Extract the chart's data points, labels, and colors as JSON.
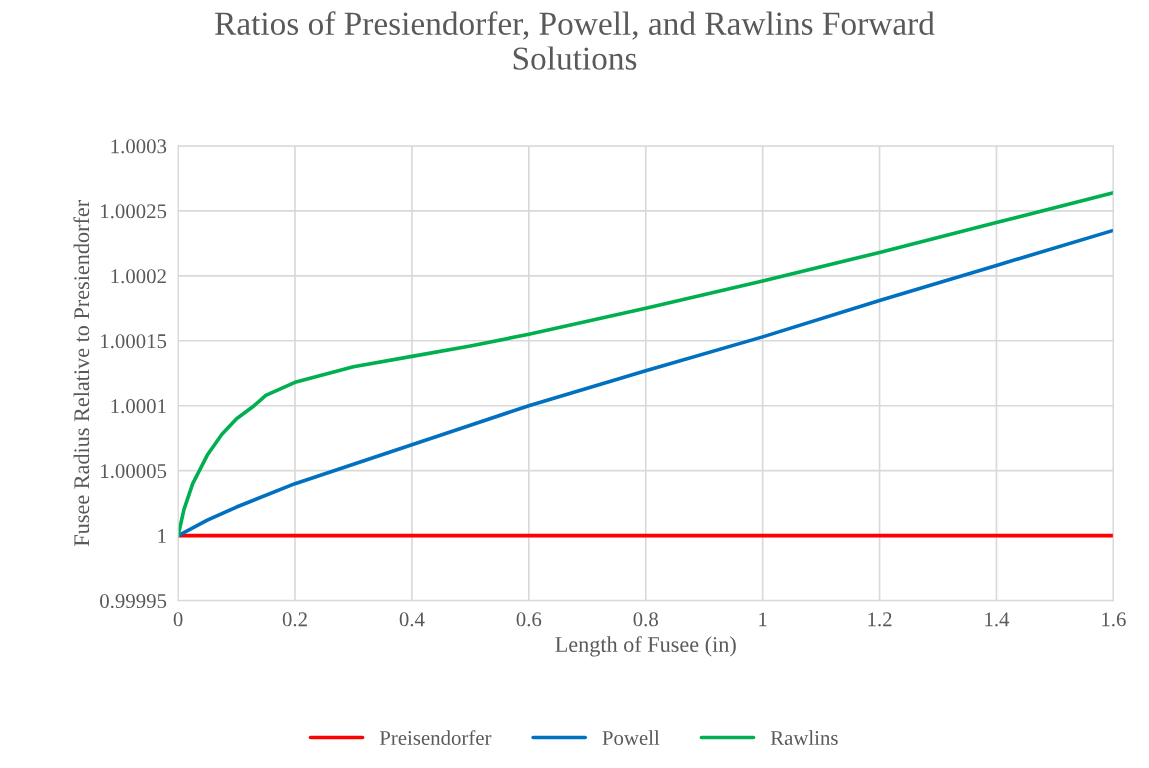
{
  "chart_data": {
    "type": "line",
    "title": "Ratios of Presiendorfer, Powell, and Rawlins Forward\nSolutions",
    "xlabel": "Length of Fusee (in)",
    "ylabel": "Fusee Radius Relative to Presiendorfer",
    "series": [
      {
        "name": "Preisendorfer",
        "color": "#ff0000",
        "x": [
          0,
          0.4,
          0.8,
          1.2,
          1.6
        ],
        "values": [
          1,
          1,
          1,
          1,
          1
        ]
      },
      {
        "name": "Powell",
        "color": "#0070c0",
        "x": [
          0,
          0.05,
          0.1,
          0.2,
          0.3,
          0.4,
          0.5,
          0.6,
          0.8,
          1.0,
          1.2,
          1.4,
          1.6
        ],
        "values": [
          1,
          1.000012,
          1.000022,
          1.00004,
          1.000055,
          1.00007,
          1.000085,
          1.0001,
          1.000127,
          1.000153,
          1.000181,
          1.000208,
          1.000235
        ]
      },
      {
        "name": "Rawlins",
        "color": "#00b050",
        "x": [
          0,
          0.01,
          0.025,
          0.05,
          0.075,
          0.1,
          0.13,
          0.15,
          0.2,
          0.3,
          0.4,
          0.5,
          0.6,
          0.8,
          1.0,
          1.2,
          1.4,
          1.6
        ],
        "values": [
          1,
          1.00002,
          1.00004,
          1.000062,
          1.000078,
          1.00009,
          1.0001,
          1.000108,
          1.000118,
          1.00013,
          1.000138,
          1.000146,
          1.000155,
          1.000175,
          1.000196,
          1.000218,
          1.000241,
          1.000264
        ]
      }
    ],
    "xlim": [
      0,
      1.6
    ],
    "xticks": [
      0,
      0.2,
      0.4,
      0.6,
      0.8,
      {
        "value": 1.0,
        "label": "1"
      },
      1.2,
      1.4,
      1.6
    ],
    "ylim": [
      0.99995,
      1.0003
    ],
    "yticks": [
      {
        "value": 0.99995,
        "label": "0.99995"
      },
      {
        "value": 1.0,
        "label": "1"
      },
      {
        "value": 1.00005,
        "label": "1.00005"
      },
      {
        "value": 1.0001,
        "label": "1.0001"
      },
      {
        "value": 1.00015,
        "label": "1.00015"
      },
      {
        "value": 1.0002,
        "label": "1.0002"
      },
      {
        "value": 1.00025,
        "label": "1.00025"
      },
      {
        "value": 1.0003,
        "label": "1.0003"
      }
    ],
    "grid": true,
    "legend": "bottom",
    "marker": "none",
    "line_style": "solid"
  }
}
